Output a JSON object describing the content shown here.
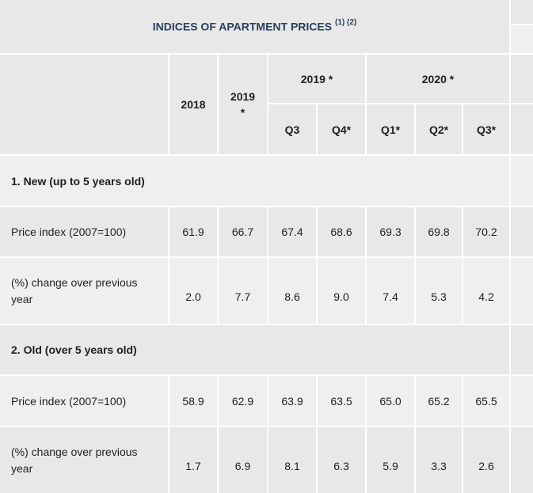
{
  "table": {
    "title": "INDICES OF APARTMENT PRICES",
    "title_notes": "(1) (2)",
    "col_headers": {
      "y2018": "2018",
      "y2019_a": "2019",
      "y2019_b": "*",
      "group_2019": "2019 *",
      "group_2020": "2020 *",
      "quarters": [
        "Q3",
        "Q4*",
        "Q1*",
        "Q2*",
        "Q3*"
      ]
    },
    "sections": [
      {
        "heading": "1. New (up to 5 years old)",
        "rows": [
          {
            "label": "Price index (2007=100)",
            "values": [
              "61.9",
              "66.7",
              "67.4",
              "68.6",
              "69.3",
              "69.8",
              "70.2"
            ]
          },
          {
            "label": "(%) change over previous year",
            "values": [
              "2.0",
              "7.7",
              "8.6",
              "9.0",
              "7.4",
              "5.3",
              "4.2"
            ]
          }
        ]
      },
      {
        "heading": "2. Old (over 5 years old)",
        "rows": [
          {
            "label": "Price index (2007=100)",
            "values": [
              "58.9",
              "62.9",
              "63.9",
              "63.5",
              "65.0",
              "65.2",
              "65.5"
            ]
          },
          {
            "label": "(%) change over previous year",
            "values": [
              "1.7",
              "6.9",
              "8.1",
              "6.3",
              "5.9",
              "3.3",
              "2.6"
            ]
          }
        ]
      }
    ]
  }
}
